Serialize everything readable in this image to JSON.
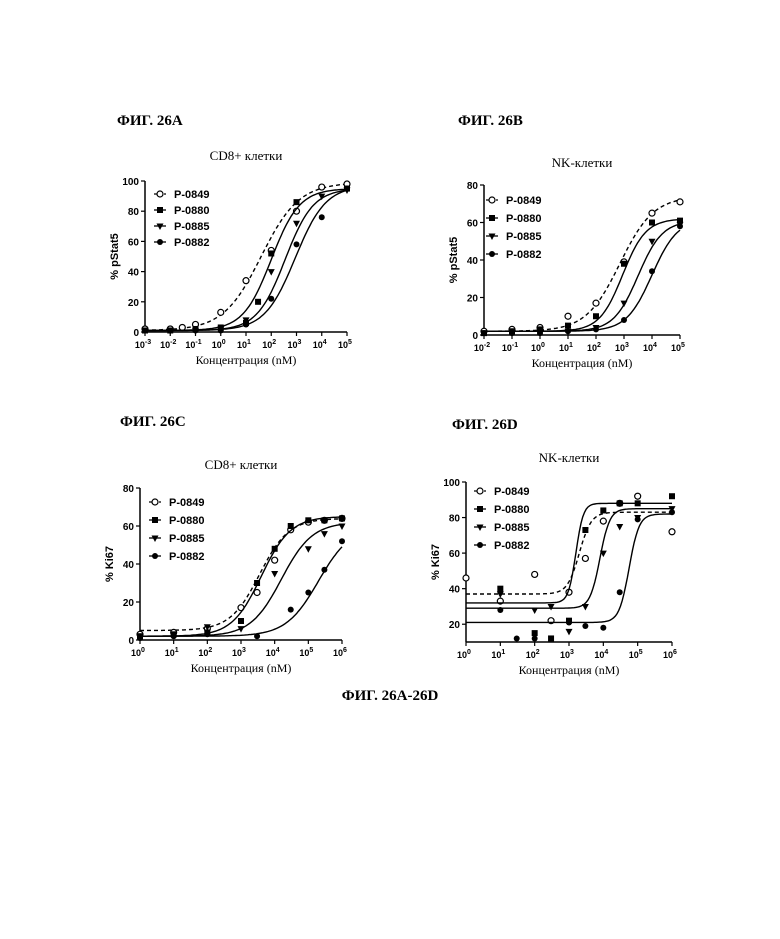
{
  "caption": "ФИГ. 26A-26D",
  "chart_data": [
    {
      "type": "line",
      "figure_label": "ФИГ. 26A",
      "title": "CD8+ клетки",
      "xlabel": "Концентрация (nM)",
      "ylabel": "% pStat5",
      "xscale": "log",
      "xlim": [
        0.001,
        100000
      ],
      "ylim": [
        0,
        100
      ],
      "x_ticks": [
        "-3",
        "-2",
        "-1",
        "0",
        "1",
        "2",
        "3",
        "4",
        "5"
      ],
      "y_ticks": [
        "0",
        "20",
        "40",
        "60",
        "80",
        "100"
      ],
      "legend_position": "top-left",
      "series": [
        {
          "name": "P-0849",
          "marker": "open-circle",
          "line": "dashed",
          "x": [
            0.001,
            0.01,
            0.03,
            0.1,
            1,
            10,
            100,
            1000,
            10000,
            100000
          ],
          "y": [
            2,
            2,
            3,
            5,
            13,
            34,
            54,
            80,
            96,
            98
          ],
          "fit": {
            "bottom": 1,
            "top": 99,
            "logec50": 1.6,
            "hill": 0.58
          }
        },
        {
          "name": "P-0880",
          "marker": "square",
          "line": "solid",
          "x": [
            0.001,
            0.01,
            0.1,
            1,
            10,
            30,
            100,
            1000,
            100000
          ],
          "y": [
            1,
            1,
            2,
            3,
            6,
            20,
            52,
            86,
            95
          ],
          "fit": {
            "bottom": 1,
            "top": 95,
            "logec50": 2.0,
            "hill": 0.78
          }
        },
        {
          "name": "P-0885",
          "marker": "down-triangle",
          "line": "solid",
          "x": [
            0.001,
            0.01,
            0.1,
            1,
            10,
            100,
            1000,
            10000,
            100000
          ],
          "y": [
            1,
            1,
            1,
            2,
            8,
            40,
            72,
            90,
            94
          ],
          "fit": {
            "bottom": 1,
            "top": 95,
            "logec50": 2.55,
            "hill": 0.78
          }
        },
        {
          "name": "P-0882",
          "marker": "filled-circle",
          "line": "solid",
          "x": [
            0.001,
            0.01,
            0.1,
            1,
            10,
            100,
            1000,
            10000,
            100000
          ],
          "y": [
            1,
            1,
            1,
            1,
            5,
            22,
            58,
            76,
            95
          ],
          "fit": {
            "bottom": 1,
            "top": 97,
            "logec50": 2.95,
            "hill": 0.72
          }
        }
      ]
    },
    {
      "type": "line",
      "figure_label": "ФИГ. 26B",
      "title": "NK-клетки",
      "xlabel": "Концентрация (nM)",
      "ylabel": "% pStat5",
      "xscale": "log",
      "xlim": [
        0.01,
        100000
      ],
      "ylim": [
        0,
        80
      ],
      "x_ticks": [
        "-2",
        "-1",
        "0",
        "1",
        "2",
        "3",
        "4",
        "5"
      ],
      "y_ticks": [
        "0",
        "20",
        "40",
        "60",
        "80"
      ],
      "legend_position": "top-left",
      "series": [
        {
          "name": "P-0849",
          "marker": "open-circle",
          "line": "dashed",
          "x": [
            0.01,
            0.1,
            1,
            10,
            100,
            1000,
            10000,
            100000
          ],
          "y": [
            2,
            3,
            4,
            10,
            17,
            39,
            65,
            71
          ],
          "fit": {
            "bottom": 2,
            "top": 74,
            "logec50": 2.85,
            "hill": 0.72
          }
        },
        {
          "name": "P-0880",
          "marker": "square",
          "line": "solid",
          "x": [
            0.01,
            0.1,
            1,
            10,
            100,
            1000,
            10000,
            100000
          ],
          "y": [
            1,
            2,
            3,
            5,
            10,
            38,
            60,
            61
          ],
          "fit": {
            "bottom": 2,
            "top": 62,
            "logec50": 2.95,
            "hill": 1.05
          }
        },
        {
          "name": "P-0885",
          "marker": "down-triangle",
          "line": "solid",
          "x": [
            0.01,
            0.1,
            1,
            10,
            100,
            1000,
            10000,
            100000
          ],
          "y": [
            1,
            1,
            2,
            2,
            4,
            17,
            50,
            59
          ],
          "fit": {
            "bottom": 2,
            "top": 61,
            "logec50": 3.5,
            "hill": 1.0
          }
        },
        {
          "name": "P-0882",
          "marker": "filled-circle",
          "line": "solid",
          "x": [
            0.01,
            0.1,
            1,
            10,
            100,
            1000,
            10000,
            100000
          ],
          "y": [
            1,
            1,
            1,
            2,
            3,
            8,
            34,
            58
          ],
          "fit": {
            "bottom": 2,
            "top": 62,
            "logec50": 4.0,
            "hill": 0.95
          }
        }
      ]
    },
    {
      "type": "line",
      "figure_label": "ФИГ. 26C",
      "title": "CD8+ клетки",
      "xlabel": "Концентрация (nM)",
      "ylabel": "% Ki67",
      "xscale": "log",
      "xlim": [
        1,
        1000000
      ],
      "ylim": [
        0,
        80
      ],
      "x_ticks": [
        "0",
        "1",
        "2",
        "3",
        "4",
        "5",
        "6"
      ],
      "y_ticks": [
        "0",
        "20",
        "40",
        "60",
        "80"
      ],
      "legend_position": "top-left",
      "series": [
        {
          "name": "P-0849",
          "marker": "open-circle",
          "line": "dashed",
          "x": [
            1,
            10,
            100,
            1000,
            3000,
            10000,
            30000,
            100000,
            300000,
            1000000
          ],
          "y": [
            3,
            4,
            6,
            17,
            25,
            42,
            58,
            62,
            63,
            64
          ],
          "fit": {
            "bottom": 5,
            "top": 64,
            "logec50": 3.55,
            "hill": 1.0
          }
        },
        {
          "name": "P-0880",
          "marker": "square",
          "line": "solid",
          "x": [
            1,
            10,
            100,
            1000,
            3000,
            10000,
            30000,
            100000,
            300000,
            1000000
          ],
          "y": [
            2,
            3,
            4,
            10,
            30,
            48,
            60,
            63,
            63,
            64
          ],
          "fit": {
            "bottom": 2,
            "top": 65,
            "logec50": 3.6,
            "hill": 1.0
          }
        },
        {
          "name": "P-0885",
          "marker": "down-triangle",
          "line": "solid",
          "x": [
            1,
            10,
            100,
            1000,
            10000,
            100000,
            300000,
            1000000
          ],
          "y": [
            2,
            3,
            7,
            6,
            35,
            48,
            56,
            60
          ],
          "fit": {
            "bottom": 2,
            "top": 62,
            "logec50": 4.2,
            "hill": 0.95
          }
        },
        {
          "name": "P-0882",
          "marker": "filled-circle",
          "line": "solid",
          "x": [
            1,
            10,
            100,
            3000,
            30000,
            100000,
            300000,
            1000000
          ],
          "y": [
            1,
            2,
            3,
            2,
            16,
            25,
            37,
            52
          ],
          "fit": {
            "bottom": 2,
            "top": 60,
            "logec50": 5.3,
            "hill": 0.9
          }
        }
      ]
    },
    {
      "type": "line",
      "figure_label": "ФИГ. 26D",
      "title": "NK-клетки",
      "xlabel": "Концентрация (nM)",
      "ylabel": "% Ki67",
      "xscale": "log",
      "xlim": [
        1,
        1000000
      ],
      "ylim": [
        10,
        100
      ],
      "x_ticks": [
        "0",
        "1",
        "2",
        "3",
        "4",
        "5",
        "6"
      ],
      "y_ticks": [
        "20",
        "40",
        "60",
        "80",
        "100"
      ],
      "legend_position": "top-left",
      "series": [
        {
          "name": "P-0849",
          "marker": "open-circle",
          "line": "dashed",
          "x": [
            1,
            10,
            100,
            300,
            1000,
            3000,
            10000,
            30000,
            100000,
            1000000
          ],
          "y": [
            46,
            33,
            48,
            22,
            38,
            57,
            78,
            88,
            92,
            72
          ],
          "fit": {
            "bottom": 37,
            "top": 83,
            "logec50": 3.3,
            "hill": 2.5
          }
        },
        {
          "name": "P-0880",
          "marker": "square",
          "line": "solid",
          "x": [
            10,
            100,
            300,
            1000,
            3000,
            10000,
            30000,
            100000,
            1000000
          ],
          "y": [
            40,
            15,
            12,
            22,
            73,
            84,
            88,
            88,
            92
          ],
          "fit": {
            "bottom": 32,
            "top": 88,
            "logec50": 3.2,
            "hill": 4.0
          }
        },
        {
          "name": "P-0885",
          "marker": "down-triangle",
          "line": "solid",
          "x": [
            10,
            100,
            300,
            1000,
            3000,
            10000,
            30000,
            100000,
            1000000
          ],
          "y": [
            37,
            28,
            30,
            16,
            30,
            60,
            75,
            80,
            85
          ],
          "fit": {
            "bottom": 29,
            "top": 85,
            "logec50": 3.9,
            "hill": 3.0
          }
        },
        {
          "name": "P-0882",
          "marker": "filled-circle",
          "line": "solid",
          "x": [
            10,
            30,
            100,
            1000,
            3000,
            10000,
            30000,
            100000,
            1000000
          ],
          "y": [
            28,
            12,
            12,
            21,
            19,
            18,
            38,
            79,
            83
          ],
          "fit": {
            "bottom": 21,
            "top": 82,
            "logec50": 4.75,
            "hill": 3.0
          }
        }
      ]
    }
  ]
}
